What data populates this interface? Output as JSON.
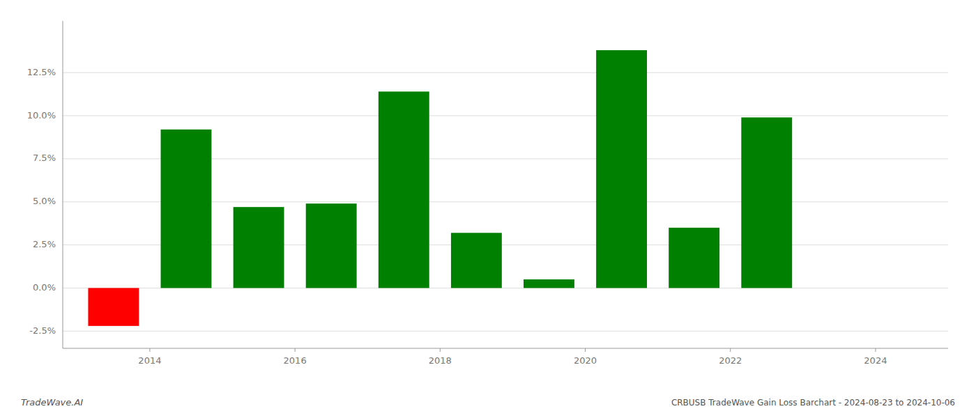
{
  "chart_data": {
    "type": "bar",
    "title": "CRBUSB TradeWave Gain Loss Barchart - 2024-08-23 to 2024-10-06",
    "annotations": [
      "TradeWave.AI"
    ],
    "x": [
      2013.5,
      2014.5,
      2015.5,
      2016.5,
      2017.5,
      2018.5,
      2019.5,
      2020.5,
      2021.5,
      2022.5,
      2023.5
    ],
    "values": [
      -0.022,
      0.092,
      0.047,
      0.049,
      0.114,
      0.032,
      0.005,
      0.138,
      0.035,
      0.099,
      0.0
    ],
    "colors": [
      "#ff0000",
      "#008000",
      "#008000",
      "#008000",
      "#008000",
      "#008000",
      "#008000",
      "#008000",
      "#008000",
      "#008000",
      "#008000"
    ],
    "xlim": [
      2012.8,
      2025.0
    ],
    "xticks": [
      2014,
      2016,
      2018,
      2020,
      2022,
      2024
    ],
    "ylim": [
      -0.035,
      0.155
    ],
    "yticks": [
      {
        "value": -0.025,
        "label": "-2.5%"
      },
      {
        "value": 0.0,
        "label": "0.0%"
      },
      {
        "value": 0.025,
        "label": "2.5%"
      },
      {
        "value": 0.05,
        "label": "5.0%"
      },
      {
        "value": 0.075,
        "label": "7.5%"
      },
      {
        "value": 0.1,
        "label": "10.0%"
      },
      {
        "value": 0.125,
        "label": "12.5%"
      }
    ],
    "grid": true
  }
}
